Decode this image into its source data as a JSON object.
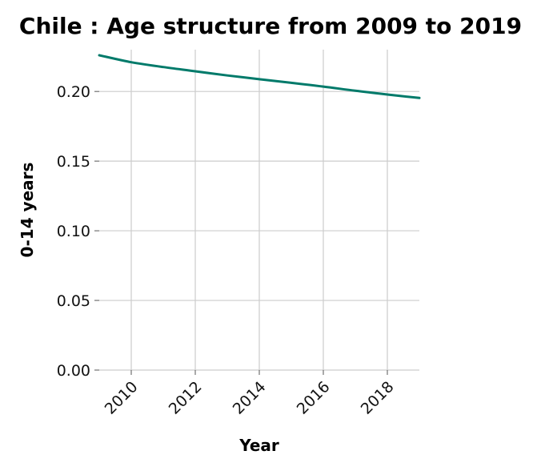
{
  "chart_data": {
    "type": "line",
    "title": "Chile : Age structure from 2009 to 2019",
    "xlabel": "Year",
    "ylabel": "0-14 years",
    "xlim": [
      2009,
      2019
    ],
    "ylim": [
      0,
      0.23
    ],
    "x_ticks": [
      "2010",
      "2012",
      "2014",
      "2016",
      "2018"
    ],
    "y_ticks": [
      "0.00",
      "0.05",
      "0.10",
      "0.15",
      "0.20"
    ],
    "grid": true,
    "colors": {
      "line": "#007a6a"
    },
    "series": [
      {
        "x": [
          2009,
          2010,
          2011,
          2012,
          2013,
          2014,
          2015,
          2016,
          2017,
          2018,
          2019
        ],
        "values": [
          0.226,
          0.221,
          0.2175,
          0.2145,
          0.2115,
          0.2088,
          0.2062,
          0.2035,
          0.2005,
          0.1978,
          0.1953
        ]
      }
    ]
  }
}
